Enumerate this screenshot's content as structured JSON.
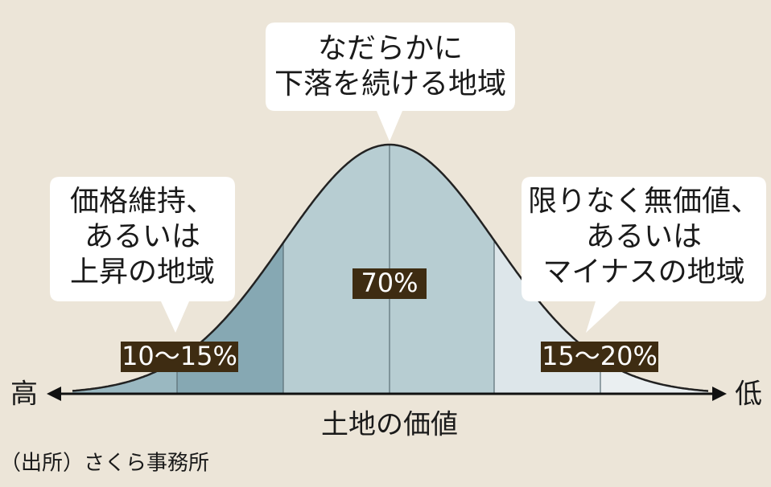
{
  "callouts": {
    "center": {
      "lines": [
        "なだらかに",
        "下落を続ける地域"
      ]
    },
    "left": {
      "lines": [
        "価格維持、",
        "あるいは",
        "上昇の地域"
      ]
    },
    "right": {
      "lines": [
        "限りなく無価値、",
        "あるいは",
        "マイナスの地域"
      ]
    }
  },
  "regions": {
    "left": "10〜15%",
    "center": "70%",
    "right": "15〜20%"
  },
  "axis": {
    "high": "高",
    "low": "低",
    "label": "土地の価値"
  },
  "source": "（出所）さくら事務所"
}
